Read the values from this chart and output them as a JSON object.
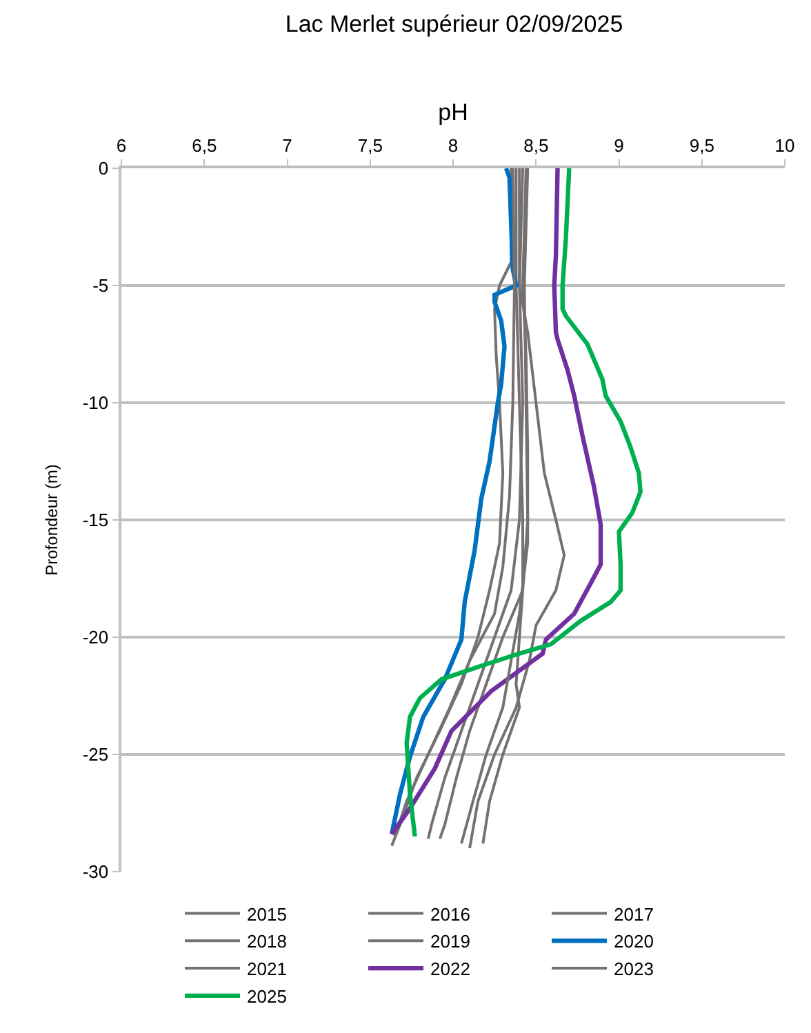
{
  "chart_data": {
    "type": "line",
    "title": "Lac Merlet supérieur 02/09/2025",
    "xlabel": "pH",
    "ylabel": "Profondeur (m)",
    "xlim": [
      6,
      10
    ],
    "xticks": [
      6,
      {
        "value": 6.5,
        "label": "6,5"
      },
      7,
      {
        "value": 7.5,
        "label": "7,5"
      },
      8,
      {
        "value": 8.5,
        "label": "8,5"
      },
      9,
      {
        "value": 9.5,
        "label": "9,5"
      },
      10
    ],
    "ylim": [
      -30,
      0
    ],
    "yticks": [
      -30,
      -25,
      -20,
      -15,
      -10,
      -5,
      0
    ],
    "grid": "y",
    "legend": "bottom",
    "marker": "none",
    "line_style": "solid",
    "series": [
      {
        "name": "2015",
        "color": "#767171",
        "x": [
          8.4,
          8.4,
          8.45,
          8.5,
          8.55,
          8.62,
          8.67,
          8.62,
          8.5,
          8.46,
          8.38,
          8.25,
          8.15,
          8.1
        ],
        "values": [
          0,
          -5,
          -7,
          -10,
          -13,
          -15,
          -16.5,
          -18,
          -19.5,
          -21,
          -23,
          -25,
          -27,
          -29
        ]
      },
      {
        "name": "2016",
        "color": "#767171",
        "x": [
          8.38,
          8.38,
          8.4,
          8.42,
          8.42,
          8.4,
          8.38,
          8.4,
          8.3,
          8.22,
          8.18
        ],
        "values": [
          0,
          -5,
          -10,
          -15,
          -18,
          -20,
          -22,
          -23,
          -25,
          -27,
          -28.8
        ]
      },
      {
        "name": "2017",
        "color": "#767171",
        "x": [
          8.35,
          8.35,
          8.28,
          8.25,
          8.26,
          8.28,
          8.3,
          8.28,
          8.22,
          8.15,
          8.05,
          7.92,
          7.78,
          7.68,
          7.63
        ],
        "values": [
          0,
          -4,
          -5,
          -6,
          -8,
          -10,
          -13,
          -16,
          -18,
          -20,
          -22,
          -24,
          -26,
          -28,
          -28.9
        ]
      },
      {
        "name": "2018",
        "color": "#767171",
        "x": [
          8.42,
          8.4,
          8.42,
          8.4,
          8.35,
          8.25,
          8.15,
          8.05,
          7.95,
          7.87,
          7.85
        ],
        "values": [
          0,
          -5,
          -10,
          -15,
          -18,
          -20,
          -22,
          -24,
          -26,
          -28,
          -28.6
        ]
      },
      {
        "name": "2019",
        "color": "#767171",
        "x": [
          8.45,
          8.43,
          8.44,
          8.45,
          8.42,
          8.3,
          8.2,
          8.1,
          8.02,
          7.95,
          7.92
        ],
        "values": [
          0,
          -5,
          -10,
          -15,
          -18,
          -20,
          -22,
          -24,
          -26,
          -28,
          -28.6
        ]
      },
      {
        "name": "2020",
        "color": "#0070c0",
        "x": [
          8.32,
          8.34,
          8.36,
          8.38,
          8.25,
          8.25,
          8.29,
          8.31,
          8.29,
          8.27,
          8.22,
          8.17,
          8.13,
          8.07,
          8.05,
          7.95,
          7.82,
          7.74,
          7.68,
          7.63
        ],
        "values": [
          0,
          -0.4,
          -4.3,
          -5,
          -5.4,
          -5.7,
          -6.5,
          -7.6,
          -9.2,
          -10,
          -12.5,
          -14.1,
          -16.3,
          -18.5,
          -20.1,
          -21.8,
          -23.4,
          -25.1,
          -26.7,
          -28.4
        ]
      },
      {
        "name": "2021",
        "color": "#767171",
        "x": [
          8.36,
          8.37,
          8.36,
          8.34,
          8.3,
          8.25,
          8.1,
          7.98,
          7.85,
          7.72,
          7.65
        ],
        "values": [
          0,
          -5,
          -10,
          -14,
          -17,
          -19,
          -21,
          -23,
          -25,
          -27,
          -28.5
        ]
      },
      {
        "name": "2022",
        "color": "#7030a0",
        "x": [
          8.63,
          8.62,
          8.61,
          8.62,
          8.63,
          8.69,
          8.73,
          8.78,
          8.85,
          8.89,
          8.89,
          8.83,
          8.73,
          8.56,
          8.54,
          8.23,
          7.99,
          7.89,
          7.74,
          7.63
        ],
        "values": [
          0,
          -3.7,
          -5,
          -7,
          -7.3,
          -8.6,
          -9.7,
          -11.4,
          -13.6,
          -15.2,
          -16.9,
          -17.7,
          -19,
          -20.1,
          -20.7,
          -22.3,
          -24,
          -25.6,
          -27.3,
          -28.4
        ]
      },
      {
        "name": "2023",
        "color": "#767171",
        "x": [
          8.44,
          8.42,
          8.44,
          8.45,
          8.45,
          8.4,
          8.35,
          8.3,
          8.2,
          8.12,
          8.05
        ],
        "values": [
          0,
          -5,
          -8,
          -12,
          -16,
          -19,
          -21,
          -23,
          -25,
          -27,
          -28.8
        ]
      },
      {
        "name": "2025",
        "color": "#00b050",
        "x": [
          8.7,
          8.68,
          8.66,
          8.66,
          8.68,
          8.81,
          8.9,
          8.92,
          9.01,
          9.07,
          9.12,
          9.13,
          9.08,
          9.0,
          9.01,
          9.01,
          8.95,
          8.77,
          8.59,
          8.4,
          8.18,
          7.93,
          7.8,
          7.74,
          7.72,
          7.74,
          7.77
        ],
        "values": [
          0,
          -3,
          -5,
          -6,
          -6.3,
          -7.5,
          -9,
          -9.7,
          -10.8,
          -11.9,
          -13,
          -13.8,
          -14.7,
          -15.5,
          -16.9,
          -18,
          -18.5,
          -19.3,
          -20.3,
          -20.7,
          -21.2,
          -21.8,
          -22.6,
          -23.4,
          -24.5,
          -26.7,
          -28.5
        ]
      }
    ]
  }
}
